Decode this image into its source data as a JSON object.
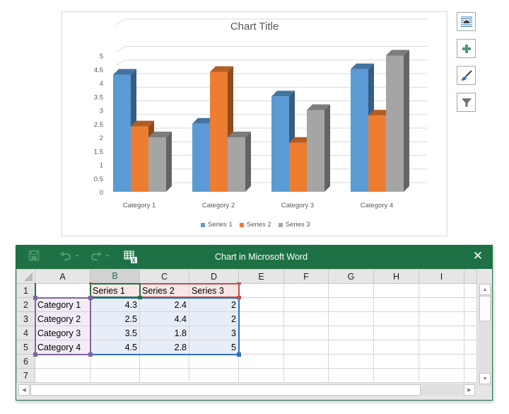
{
  "chart": {
    "title": "Chart Title",
    "side_tools": [
      {
        "name": "layout-options",
        "icon": "layout-options-icon"
      },
      {
        "name": "chart-elements",
        "icon": "plus-icon"
      },
      {
        "name": "chart-styles",
        "icon": "paintbrush-icon"
      },
      {
        "name": "chart-filters",
        "icon": "funnel-icon"
      }
    ]
  },
  "chart_data": {
    "type": "bar",
    "subtype": "3d-clustered-column",
    "title": "Chart Title",
    "categories": [
      "Category 1",
      "Category 2",
      "Category 3",
      "Category 4"
    ],
    "series": [
      {
        "name": "Series 1",
        "color": "#5b9bd5",
        "values": [
          4.3,
          2.5,
          3.5,
          4.5
        ]
      },
      {
        "name": "Series 2",
        "color": "#ed7d31",
        "values": [
          2.4,
          4.4,
          1.8,
          2.8
        ]
      },
      {
        "name": "Series 3",
        "color": "#a5a5a5",
        "values": [
          2,
          2,
          3,
          5
        ]
      }
    ],
    "y_ticks": [
      "0",
      "0.5",
      "1",
      "1.5",
      "2",
      "2.5",
      "3",
      "3.5",
      "4",
      "4.5",
      "5"
    ],
    "ylim": [
      0,
      5
    ],
    "xlabel": "",
    "ylabel": "",
    "grid": true,
    "legend_position": "bottom"
  },
  "sheet": {
    "title": "Chart in Microsoft Word",
    "toolbar": {
      "save": "save-icon",
      "undo": "undo-icon",
      "redo": "redo-icon",
      "edit_data": "edit-data-in-excel-icon"
    },
    "close_label": "✕",
    "columns": [
      "A",
      "B",
      "C",
      "D",
      "E",
      "F",
      "G",
      "H",
      "I",
      ""
    ],
    "selected_column": "B",
    "rows": [
      {
        "n": "1",
        "cells": [
          "",
          "Series 1",
          "Series 2",
          "Series 3",
          "",
          "",
          "",
          "",
          "",
          ""
        ]
      },
      {
        "n": "2",
        "cells": [
          "Category 1",
          "4.3",
          "2.4",
          "2",
          "",
          "",
          "",
          "",
          "",
          ""
        ]
      },
      {
        "n": "3",
        "cells": [
          "Category 2",
          "2.5",
          "4.4",
          "2",
          "",
          "",
          "",
          "",
          "",
          ""
        ]
      },
      {
        "n": "4",
        "cells": [
          "Category 3",
          "3.5",
          "1.8",
          "3",
          "",
          "",
          "",
          "",
          "",
          ""
        ]
      },
      {
        "n": "5",
        "cells": [
          "Category 4",
          "4.5",
          "2.8",
          "5",
          "",
          "",
          "",
          "",
          "",
          ""
        ]
      },
      {
        "n": "6",
        "cells": [
          "",
          "",
          "",
          "",
          "",
          "",
          "",
          "",
          "",
          ""
        ]
      },
      {
        "n": "7",
        "cells": [
          "",
          "",
          "",
          "",
          "",
          "",
          "",
          "",
          "",
          ""
        ]
      }
    ],
    "range_colors": {
      "series_names": "#c0504d",
      "categories": "#8064a2",
      "values": "#2e6ec4",
      "active": "#217346"
    }
  }
}
